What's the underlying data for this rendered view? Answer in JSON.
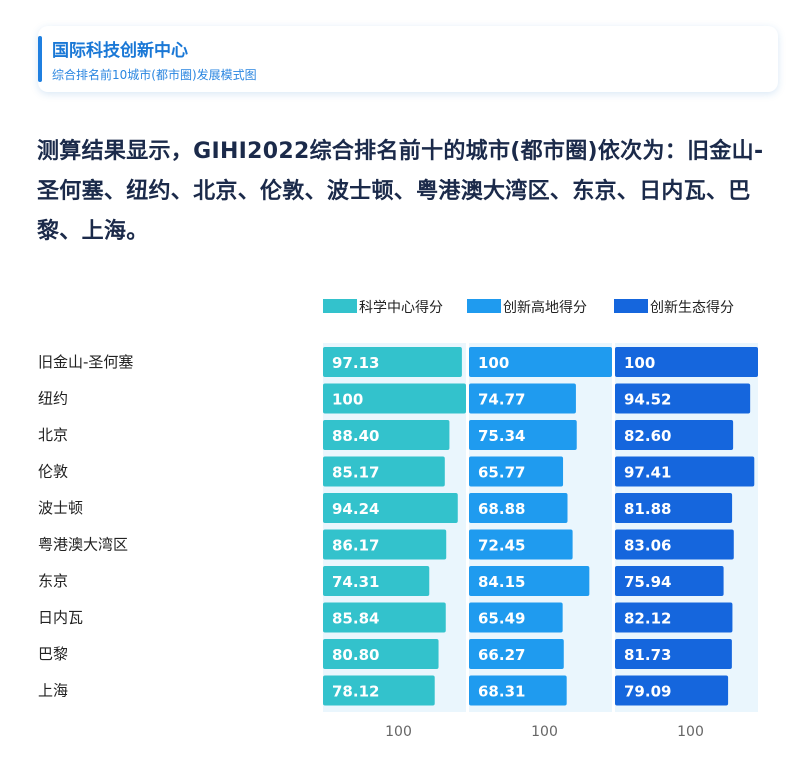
{
  "header": {
    "title": "国际科技创新中心",
    "subtitle": "综合排名前10城市(都市圈)发展模式图"
  },
  "summary": "测算结果显示，GIHI2022综合排名前十的城市(都市圈)依次为：旧金山-圣何塞、纽约、北京、伦敦、波士顿、粤港澳大湾区、东京、日内瓦、巴黎、上海。",
  "colors": {
    "science": "#33c2cc",
    "highland": "#1f9bef",
    "ecosystem": "#1566dd",
    "track": "#eaf6fd",
    "label": "#222222",
    "value_text": "#ffffff",
    "axis_text": "#666666"
  },
  "chart_data": {
    "type": "bar",
    "orientation": "horizontal",
    "categories": [
      "旧金山-圣何塞",
      "纽约",
      "北京",
      "伦敦",
      "波士顿",
      "粤港澳大湾区",
      "东京",
      "日内瓦",
      "巴黎",
      "上海"
    ],
    "series": [
      {
        "name": "科学中心得分",
        "values": [
          97.13,
          100,
          88.4,
          85.17,
          94.24,
          86.17,
          74.31,
          85.84,
          80.8,
          78.12
        ],
        "labels": [
          "97.13",
          "100",
          "88.40",
          "85.17",
          "94.24",
          "86.17",
          "74.31",
          "85.84",
          "80.80",
          "78.12"
        ]
      },
      {
        "name": "创新高地得分",
        "values": [
          100,
          74.77,
          75.34,
          65.77,
          68.88,
          72.45,
          84.15,
          65.49,
          66.27,
          68.31
        ],
        "labels": [
          "100",
          "74.77",
          "75.34",
          "65.77",
          "68.88",
          "72.45",
          "84.15",
          "65.49",
          "66.27",
          "68.31"
        ]
      },
      {
        "name": "创新生态得分",
        "values": [
          100,
          94.52,
          82.6,
          97.41,
          81.88,
          83.06,
          75.94,
          82.12,
          81.73,
          79.09
        ],
        "labels": [
          "100",
          "94.52",
          "82.60",
          "97.41",
          "81.88",
          "83.06",
          "75.94",
          "82.12",
          "81.73",
          "79.09"
        ]
      }
    ],
    "xlim": [
      0,
      100
    ],
    "axis_max_labels": [
      "100",
      "100",
      "100"
    ],
    "legend_position": "top-right",
    "grid": false
  }
}
